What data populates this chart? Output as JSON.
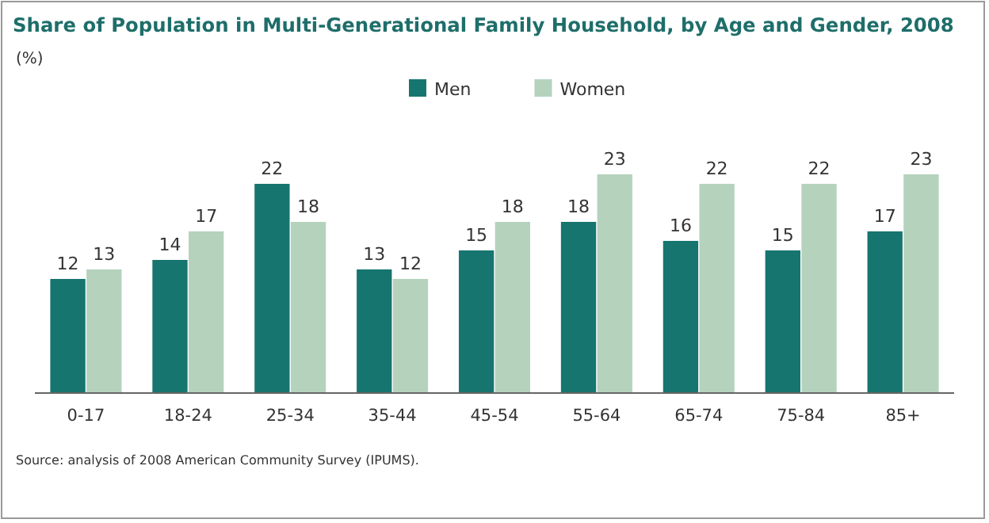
{
  "chart_data": {
    "type": "bar",
    "title": "Share of Population in Multi-Generational Family Household, by Age and Gender, 2008",
    "categories": [
      "0-17",
      "18-24",
      "25-34",
      "35-44",
      "45-54",
      "55-64",
      "65-74",
      "75-84",
      "85+"
    ],
    "series": [
      {
        "name": "Men",
        "color": "#17756f",
        "values": [
          12,
          14,
          22,
          13,
          15,
          18,
          16,
          15,
          17
        ]
      },
      {
        "name": "Women",
        "color": "#b5d2bd",
        "values": [
          13,
          17,
          18,
          12,
          18,
          23,
          22,
          22,
          23
        ]
      }
    ],
    "tick_labels": "x",
    "data_labels": true,
    "legend": "top",
    "annotations": [
      "(%)",
      "Source: analysis of 2008 American Community Survey (IPUMS)."
    ]
  }
}
